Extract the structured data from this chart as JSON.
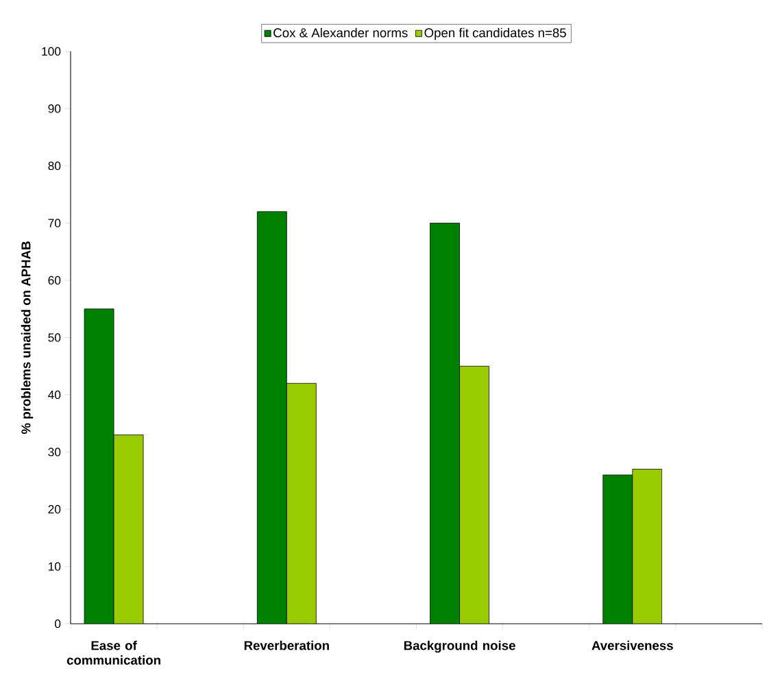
{
  "chart_data": {
    "type": "bar",
    "ylabel": "% problems unaided on APHAB",
    "categories": [
      "Ease of communication",
      null,
      "Reverberation",
      null,
      "Background noise",
      null,
      "Aversiveness",
      null
    ],
    "series": [
      {
        "name": "Cox & Alexander norms",
        "color": "#008000",
        "values": [
          55,
          null,
          72,
          null,
          70,
          null,
          26,
          null
        ]
      },
      {
        "name": "Open fit candidates  n=85",
        "color": "#99cc00",
        "values": [
          33,
          null,
          42,
          null,
          45,
          null,
          27,
          null
        ]
      }
    ],
    "ylim": [
      0,
      100
    ],
    "yticks": [
      0,
      10,
      20,
      30,
      40,
      50,
      60,
      70,
      80,
      90,
      100
    ],
    "grid": false,
    "legend": "top"
  }
}
